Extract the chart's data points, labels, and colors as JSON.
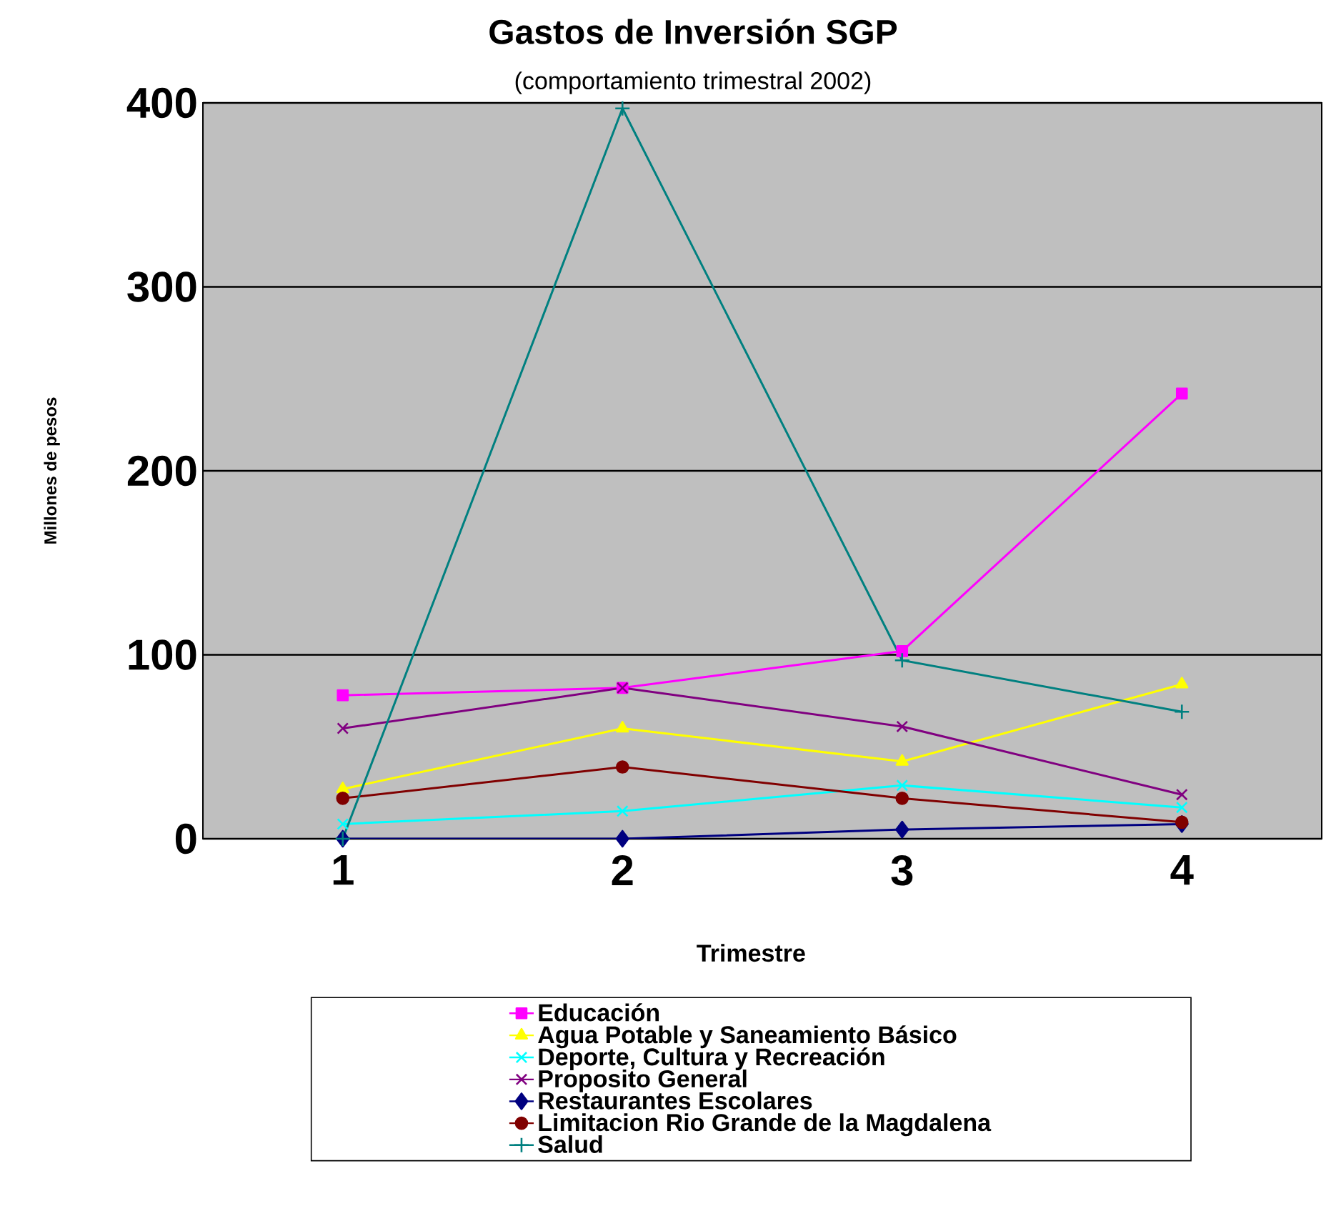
{
  "chart_data": {
    "type": "line",
    "title": "Gastos de Inversión SGP",
    "subtitle": "(comportamiento trimestral 2002)",
    "xlabel": "Trimestre",
    "ylabel": "Millones de pesos",
    "categories": [
      "1",
      "2",
      "3",
      "4"
    ],
    "ylim": [
      0,
      400
    ],
    "yticks": [
      0,
      100,
      200,
      300,
      400
    ],
    "grid": "y",
    "legend": "bottom",
    "series": [
      {
        "name": "Educación",
        "color": "#ff00ff",
        "marker": "square",
        "values": [
          78,
          82,
          102,
          242
        ]
      },
      {
        "name": "Agua Potable y Saneamiento Básico",
        "color": "#ffff00",
        "marker": "triangle",
        "values": [
          27,
          60,
          42,
          84
        ]
      },
      {
        "name": "Deporte, Cultura y Recreación",
        "color": "#00ffff",
        "marker": "cross",
        "values": [
          8,
          15,
          29,
          17
        ]
      },
      {
        "name": "Proposito General",
        "color": "#800080",
        "marker": "cross",
        "values": [
          60,
          82,
          61,
          24
        ]
      },
      {
        "name": "Restaurantes Escolares",
        "color": "#000080",
        "marker": "diamond",
        "values": [
          0,
          0,
          5,
          8
        ]
      },
      {
        "name": "Limitacion Rio Grande de la Magdalena",
        "color": "#800000",
        "marker": "circle",
        "values": [
          22,
          39,
          22,
          9
        ]
      },
      {
        "name": "Salud",
        "color": "#008080",
        "marker": "plus",
        "values": [
          0,
          397,
          97,
          69
        ]
      }
    ]
  }
}
